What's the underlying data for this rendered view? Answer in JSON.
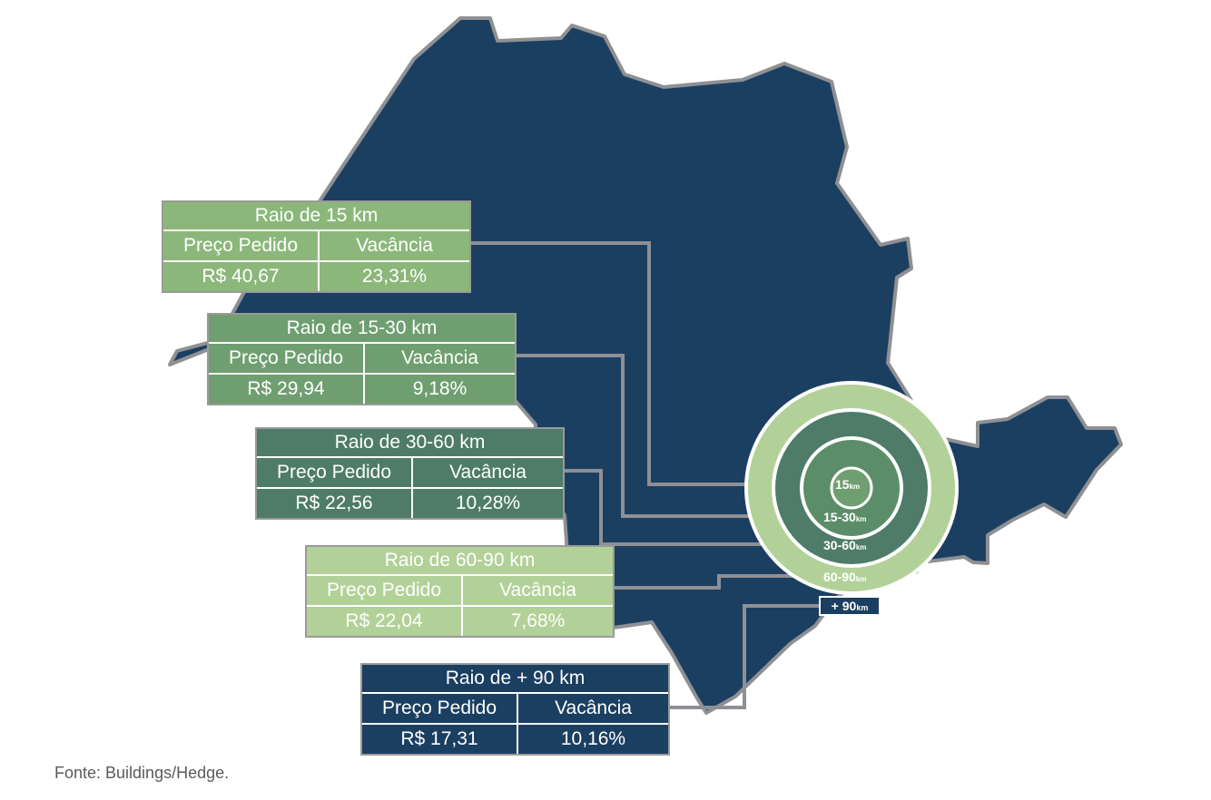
{
  "colors": {
    "state_fill": "#1b3f61",
    "state_border": "#8e9094",
    "leader_line": "#8e9094",
    "ring_15": "#8bb77a",
    "ring_15_30": "#5b8d69",
    "ring_30_60": "#4e7c69",
    "ring_60_90": "#b2d198",
    "ring_plus90": "#1b3f61"
  },
  "rings": {
    "r15": {
      "number": "15",
      "unit": "km"
    },
    "r15_30": {
      "number": "15-30",
      "unit": "km"
    },
    "r30_60": {
      "number": "30-60",
      "unit": "km"
    },
    "r60_90": {
      "number": "60-90",
      "unit": "km"
    },
    "plus90": {
      "number": "+ 90",
      "unit": "km"
    }
  },
  "tables": [
    {
      "title": "Raio de 15 km",
      "col1": "Preço Pedido",
      "col2": "Vacância",
      "price": "R$ 40,67",
      "vacancy": "23,31%",
      "color": "#8bb77a"
    },
    {
      "title": "Raio de 15-30 km",
      "col1": "Preço Pedido",
      "col2": "Vacância",
      "price": "R$ 29,94",
      "vacancy": "9,18%",
      "color": "#6f9f70"
    },
    {
      "title": "Raio de 30-60 km",
      "col1": "Preço Pedido",
      "col2": "Vacância",
      "price": "R$ 22,56",
      "vacancy": "10,28%",
      "color": "#4e7c69"
    },
    {
      "title": "Raio de 60-90 km",
      "col1": "Preço Pedido",
      "col2": "Vacância",
      "price": "R$ 22,04",
      "vacancy": "7,68%",
      "color": "#b2d198"
    },
    {
      "title": "Raio de + 90 km",
      "col1": "Preço Pedido",
      "col2": "Vacância",
      "price": "R$ 17,31",
      "vacancy": "10,16%",
      "color": "#1b3f61"
    }
  ],
  "source": "Fonte: Buildings/Hedge."
}
